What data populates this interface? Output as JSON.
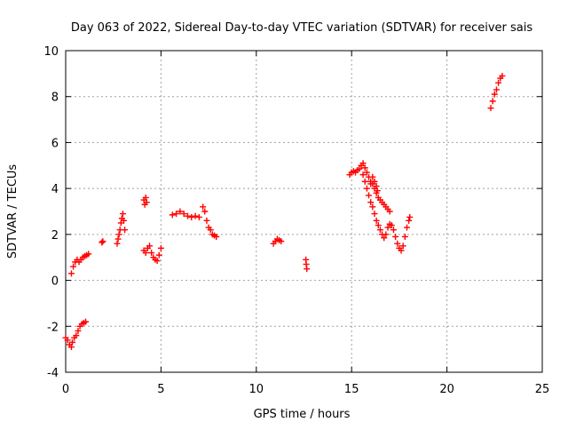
{
  "chart_data": {
    "type": "scatter",
    "title": "Day 063 of 2022, Sidereal Day-to-day VTEC variation (SDTVAR) for receiver sais",
    "xlabel": "GPS time / hours",
    "ylabel": "SDTVAR / TECUs",
    "xlim": [
      0,
      25
    ],
    "ylim": [
      -4,
      10
    ],
    "xticks": [
      0,
      5,
      10,
      15,
      20,
      25
    ],
    "yticks": [
      -4,
      -2,
      0,
      2,
      4,
      6,
      8,
      10
    ],
    "grid": true,
    "marker": "+",
    "series": [
      {
        "name": "SDTVAR",
        "color": "#ff0000",
        "segments": [
          [
            [
              0.0,
              -2.5
            ],
            [
              0.1,
              -2.6
            ],
            [
              0.2,
              -2.8
            ],
            [
              0.3,
              -2.9
            ],
            [
              0.35,
              -2.7
            ],
            [
              0.45,
              -2.5
            ],
            [
              0.55,
              -2.4
            ],
            [
              0.65,
              -2.2
            ],
            [
              0.75,
              -2.0
            ],
            [
              0.85,
              -1.9
            ],
            [
              0.95,
              -1.85
            ],
            [
              1.05,
              -1.8
            ]
          ],
          [
            [
              0.3,
              0.3
            ],
            [
              0.4,
              0.6
            ],
            [
              0.5,
              0.8
            ],
            [
              0.6,
              0.9
            ],
            [
              0.7,
              0.8
            ],
            [
              0.8,
              0.9
            ],
            [
              0.9,
              1.0
            ],
            [
              1.0,
              1.05
            ],
            [
              1.1,
              1.1
            ],
            [
              1.2,
              1.15
            ]
          ],
          [
            [
              1.9,
              1.65
            ],
            [
              1.95,
              1.7
            ]
          ],
          [
            [
              2.7,
              1.6
            ],
            [
              2.75,
              1.8
            ],
            [
              2.8,
              2.0
            ],
            [
              2.85,
              2.2
            ],
            [
              2.9,
              2.5
            ],
            [
              2.95,
              2.7
            ],
            [
              3.0,
              2.9
            ],
            [
              3.05,
              2.6
            ],
            [
              3.1,
              2.2
            ]
          ],
          [
            [
              4.1,
              3.5
            ],
            [
              4.15,
              3.3
            ],
            [
              4.2,
              3.6
            ],
            [
              4.25,
              3.4
            ]
          ],
          [
            [
              4.1,
              1.3
            ],
            [
              4.2,
              1.2
            ],
            [
              4.3,
              1.4
            ],
            [
              4.4,
              1.5
            ],
            [
              4.5,
              1.2
            ],
            [
              4.6,
              1.0
            ],
            [
              4.7,
              0.9
            ],
            [
              4.8,
              0.85
            ],
            [
              4.9,
              1.1
            ],
            [
              5.0,
              1.4
            ]
          ],
          [
            [
              5.6,
              2.85
            ],
            [
              5.8,
              2.9
            ],
            [
              6.0,
              3.0
            ],
            [
              6.2,
              2.9
            ],
            [
              6.4,
              2.8
            ],
            [
              6.6,
              2.75
            ],
            [
              6.8,
              2.8
            ],
            [
              7.0,
              2.75
            ]
          ],
          [
            [
              7.2,
              3.2
            ],
            [
              7.3,
              3.0
            ],
            [
              7.4,
              2.6
            ],
            [
              7.5,
              2.3
            ],
            [
              7.6,
              2.2
            ],
            [
              7.7,
              2.0
            ],
            [
              7.8,
              1.95
            ],
            [
              7.9,
              1.9
            ]
          ],
          [
            [
              10.9,
              1.6
            ],
            [
              11.0,
              1.7
            ],
            [
              11.1,
              1.8
            ],
            [
              11.2,
              1.75
            ],
            [
              11.3,
              1.7
            ]
          ],
          [
            [
              12.6,
              0.9
            ],
            [
              12.62,
              0.7
            ],
            [
              12.65,
              0.5
            ]
          ],
          [
            [
              14.9,
              4.6
            ],
            [
              15.0,
              4.7
            ],
            [
              15.1,
              4.75
            ],
            [
              15.2,
              4.7
            ],
            [
              15.3,
              4.8
            ],
            [
              15.4,
              4.85
            ],
            [
              15.5,
              5.0
            ],
            [
              15.6,
              5.1
            ],
            [
              15.7,
              4.9
            ],
            [
              15.8,
              4.7
            ],
            [
              15.9,
              4.5
            ],
            [
              16.0,
              4.3
            ],
            [
              16.1,
              4.2
            ],
            [
              16.2,
              4.0
            ],
            [
              16.3,
              3.8
            ],
            [
              16.4,
              3.6
            ],
            [
              16.5,
              3.5
            ],
            [
              16.6,
              3.4
            ],
            [
              16.7,
              3.3
            ],
            [
              16.8,
              3.2
            ],
            [
              16.9,
              3.1
            ],
            [
              17.0,
              3.0
            ]
          ],
          [
            [
              15.6,
              4.6
            ],
            [
              15.7,
              4.3
            ],
            [
              15.8,
              4.0
            ],
            [
              15.9,
              3.7
            ],
            [
              16.0,
              3.4
            ],
            [
              16.1,
              3.2
            ],
            [
              16.2,
              2.9
            ],
            [
              16.3,
              2.6
            ],
            [
              16.4,
              2.4
            ],
            [
              16.5,
              2.2
            ],
            [
              16.6,
              2.0
            ],
            [
              16.7,
              1.85
            ],
            [
              16.8,
              2.0
            ],
            [
              16.9,
              2.3
            ],
            [
              17.0,
              2.45
            ],
            [
              17.1,
              2.4
            ],
            [
              17.2,
              2.2
            ],
            [
              17.3,
              1.9
            ],
            [
              17.4,
              1.6
            ],
            [
              17.5,
              1.4
            ],
            [
              17.6,
              1.3
            ],
            [
              17.7,
              1.5
            ],
            [
              17.8,
              1.9
            ],
            [
              17.9,
              2.3
            ],
            [
              18.0,
              2.6
            ],
            [
              18.05,
              2.75
            ]
          ],
          [
            [
              16.0,
              4.2
            ],
            [
              16.1,
              4.5
            ],
            [
              16.2,
              4.3
            ],
            [
              16.3,
              4.1
            ],
            [
              16.35,
              3.9
            ]
          ],
          [
            [
              22.3,
              7.5
            ],
            [
              22.4,
              7.8
            ],
            [
              22.5,
              8.1
            ],
            [
              22.6,
              8.3
            ],
            [
              22.7,
              8.6
            ],
            [
              22.8,
              8.8
            ],
            [
              22.9,
              8.9
            ]
          ]
        ]
      }
    ]
  }
}
